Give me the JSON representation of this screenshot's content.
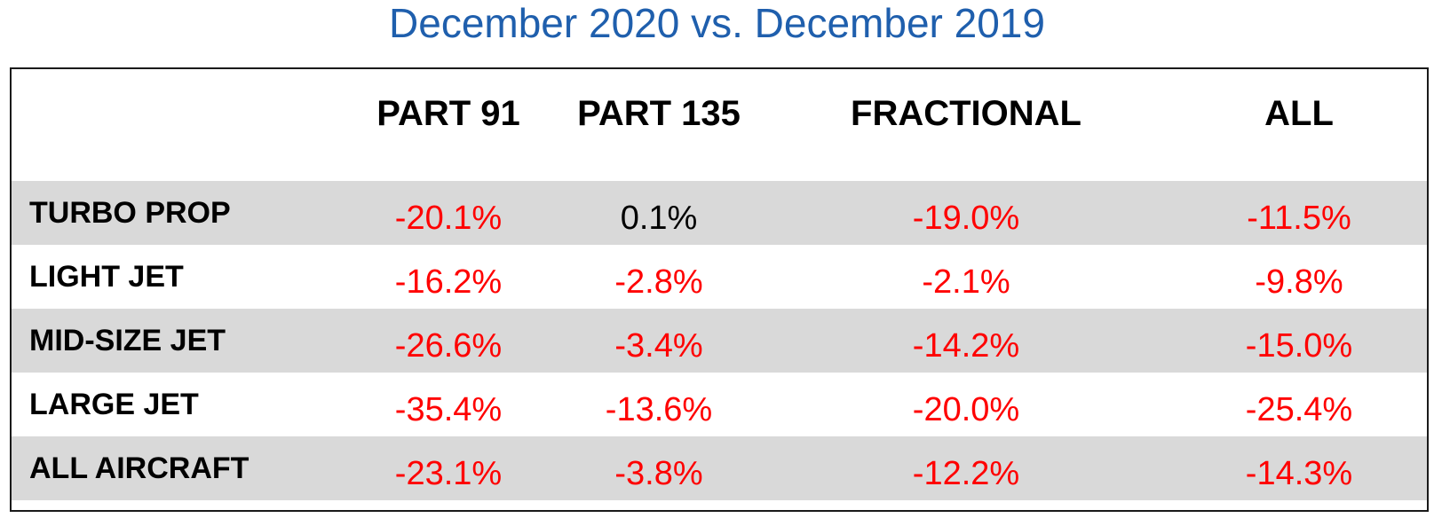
{
  "chart_data": {
    "type": "table",
    "title": "December 2020 vs. December 2019",
    "columns": [
      "PART 91",
      "PART 135",
      "FRACTIONAL",
      "ALL"
    ],
    "rows": [
      {
        "label": "TURBO PROP",
        "values": [
          "-20.1%",
          "0.1%",
          "-19.0%",
          "-11.5%"
        ]
      },
      {
        "label": "LIGHT JET",
        "values": [
          "-16.2%",
          "-2.8%",
          "-2.1%",
          "-9.8%"
        ]
      },
      {
        "label": "MID-SIZE JET",
        "values": [
          "-26.6%",
          "-3.4%",
          "-14.2%",
          "-15.0%"
        ]
      },
      {
        "label": "LARGE JET",
        "values": [
          "-35.4%",
          "-13.6%",
          "-20.0%",
          "-25.4%"
        ]
      },
      {
        "label": "ALL AIRCRAFT",
        "values": [
          "-23.1%",
          "-3.8%",
          "-12.2%",
          "-14.3%"
        ]
      }
    ]
  },
  "colors": {
    "title": "#1f5fad",
    "negative": "#ff0000",
    "positive": "#000000",
    "shaded_row": "#d9d9d9"
  }
}
